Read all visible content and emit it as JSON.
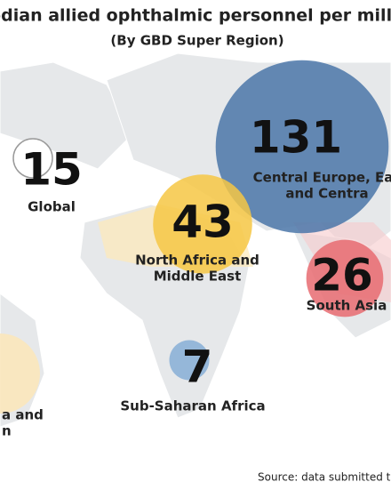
{
  "title": "Median allied ophthalmic personnel per millio",
  "subtitle": "(By GBD Super Region)",
  "source": "Source: data submitted to IA",
  "chart_data": {
    "type": "bubble",
    "points": [
      {
        "name": [
          "Global"
        ],
        "value": 15,
        "color": "none"
      },
      {
        "name": [
          "Central Europe, Eas",
          "and Centra"
        ],
        "value": 131,
        "color": "#4a75a8"
      },
      {
        "name": [
          "North Africa and",
          "Middle East"
        ],
        "value": 43,
        "color": "#f6c744"
      },
      {
        "name": [
          "South Asia"
        ],
        "value": 26,
        "color": "#e86b71"
      },
      {
        "name": [
          "Sub-Saharan Africa"
        ],
        "value": 7,
        "color": "#86aed6"
      },
      {
        "name": [
          "a and",
          "n"
        ],
        "value": null,
        "color": "#fbe6b8"
      }
    ]
  }
}
